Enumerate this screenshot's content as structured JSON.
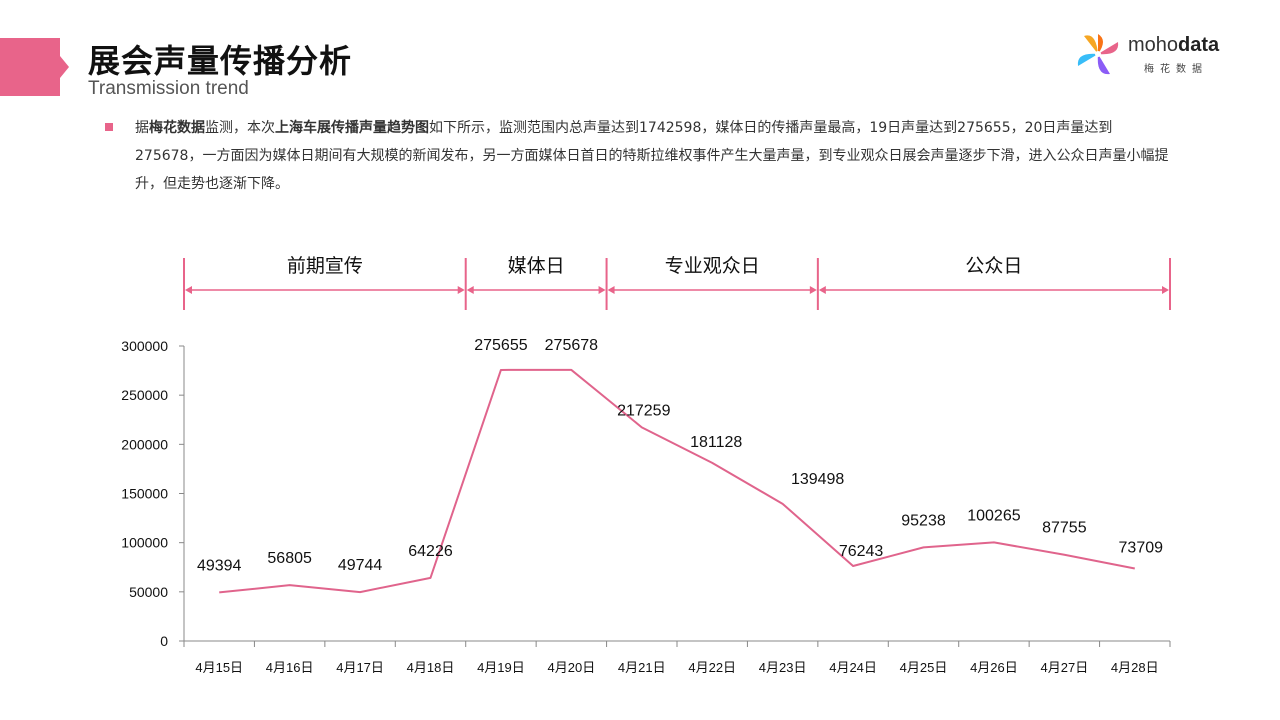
{
  "header": {
    "title": "展会声量传播分析",
    "subtitle": "Transmission trend"
  },
  "logo": {
    "name_regular": "moho",
    "name_bold": "data",
    "sub": "梅花数据"
  },
  "description": {
    "p1": "据",
    "b1": "梅花数据",
    "p2": "监测，本次",
    "b2": "上海车展传播声量趋势图",
    "p3": "如下所示，监测范围内总声量达到1742598，媒体日的传播声量最高，19日声量达到275655，20日声量达到275678，一方面因为媒体日期间有大规模的新闻发布，另一方面媒体日首日的特斯拉维权事件产生大量声量，到专业观众日展会声量逐步下滑，进入公众日声量小幅提升，但走势也逐渐下降。"
  },
  "colors": {
    "accent": "#e8648a",
    "line": "#e0648c",
    "axis": "#888888"
  },
  "phases": [
    {
      "label": "前期宣传",
      "start": 0,
      "end": 4
    },
    {
      "label": "媒体日",
      "start": 4,
      "end": 6
    },
    {
      "label": "专业观众日",
      "start": 6,
      "end": 9
    },
    {
      "label": "公众日",
      "start": 9,
      "end": 14
    }
  ],
  "chart_data": {
    "type": "line",
    "categories": [
      "4月15日",
      "4月16日",
      "4月17日",
      "4月18日",
      "4月19日",
      "4月20日",
      "4月21日",
      "4月22日",
      "4月23日",
      "4月24日",
      "4月25日",
      "4月26日",
      "4月27日",
      "4月28日"
    ],
    "values": [
      49394,
      56805,
      49744,
      64226,
      275655,
      275678,
      217259,
      181128,
      139498,
      76243,
      95238,
      100265,
      87755,
      73709
    ],
    "data_labels": [
      "49394",
      "56805",
      "49744",
      "64226",
      "275655",
      "275678",
      "217259",
      "181128",
      "139498",
      "76243",
      "95238",
      "100265",
      "87755",
      "73709"
    ],
    "y_ticks": [
      "0",
      "50000",
      "100000",
      "150000",
      "200000",
      "250000",
      "300000"
    ],
    "ylim": [
      0,
      300000
    ],
    "grid": false,
    "legend": false
  }
}
